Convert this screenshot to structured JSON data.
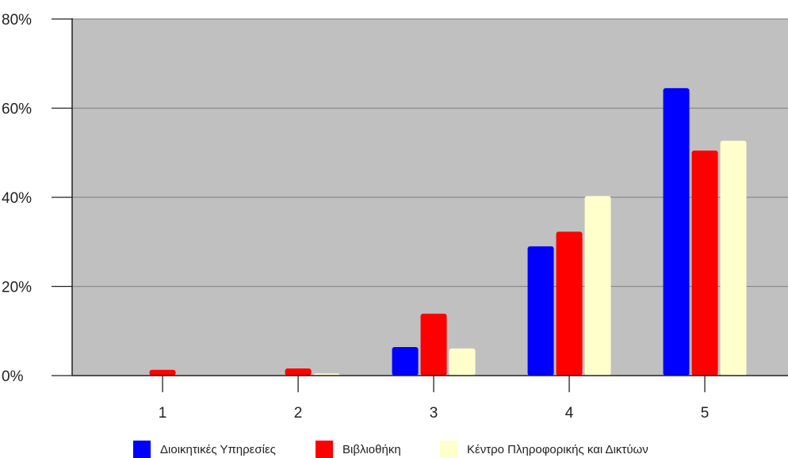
{
  "chart_data": {
    "type": "bar",
    "title": "",
    "xlabel": "",
    "ylabel": "",
    "categories": [
      "1",
      "2",
      "3",
      "4",
      "5"
    ],
    "series": [
      {
        "name": "Διοικητικές Υπηρεσίες",
        "values": [
          0,
          0,
          6.4,
          29.0,
          64.5
        ],
        "color": "#0000ff"
      },
      {
        "name": "Βιβλιοθήκη",
        "values": [
          1.3,
          1.6,
          13.9,
          32.3,
          50.5
        ],
        "color": "#ff0000"
      },
      {
        "name": "Κέντρο Πληροφορικής και Δικτύων",
        "values": [
          0,
          0.5,
          6.1,
          40.3,
          52.7
        ],
        "color": "#ffffcc"
      }
    ],
    "ylim": [
      0,
      80
    ],
    "yticks": [
      0,
      20,
      40,
      60,
      80
    ],
    "ytick_labels": [
      "0%",
      "20%",
      "40%",
      "60%",
      "80%"
    ],
    "grid": true,
    "plot_background": "#c0c0c0",
    "gridline_color": "#8a8a8a",
    "legend_position": "bottom"
  }
}
